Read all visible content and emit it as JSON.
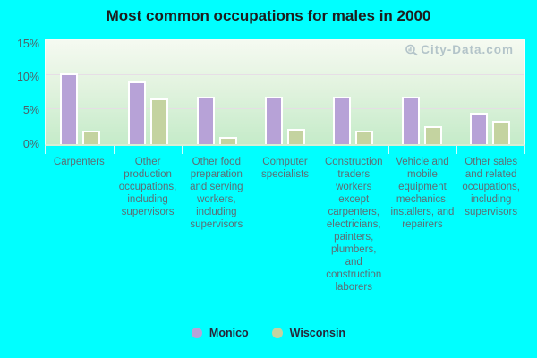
{
  "title": "Most common occupations for males in 2000",
  "watermark": "City-Data.com",
  "y_axis": {
    "ticks": [
      "15%",
      "10%",
      "5%",
      "0%"
    ]
  },
  "legend": [
    {
      "label": "Monico",
      "color": "#b7a2d7"
    },
    {
      "label": "Wisconsin",
      "color": "#c4d3a0"
    }
  ],
  "chart_data": {
    "type": "bar",
    "title": "Most common occupations for males in 2000",
    "categories": [
      "Carpenters",
      "Other production occupations, including supervisors",
      "Other food preparation and serving workers, including supervisors",
      "Computer specialists",
      "Construction traders workers except carpenters, electricians, painters, plumbers, and construction laborers",
      "Vehicle and mobile equipment mechanics, installers, and repairers",
      "Other sales and related occupations, including supervisors"
    ],
    "series": [
      {
        "name": "Monico",
        "color": "#b7a2d7",
        "values": [
          10.2,
          9.1,
          6.9,
          6.9,
          6.9,
          6.9,
          4.5
        ]
      },
      {
        "name": "Wisconsin",
        "color": "#c4d3a0",
        "values": [
          2.0,
          6.6,
          1.0,
          2.2,
          2.0,
          2.6,
          3.3
        ]
      }
    ],
    "ylabel": "",
    "xlabel": "",
    "ylim": [
      0,
      15
    ],
    "yticks": [
      0,
      5,
      10,
      15
    ],
    "ytick_format": "percent",
    "grid": true,
    "legend_position": "bottom",
    "plot_background": [
      "#f5faf1",
      "#c5ebc9"
    ],
    "page_background": "#00ffff"
  }
}
